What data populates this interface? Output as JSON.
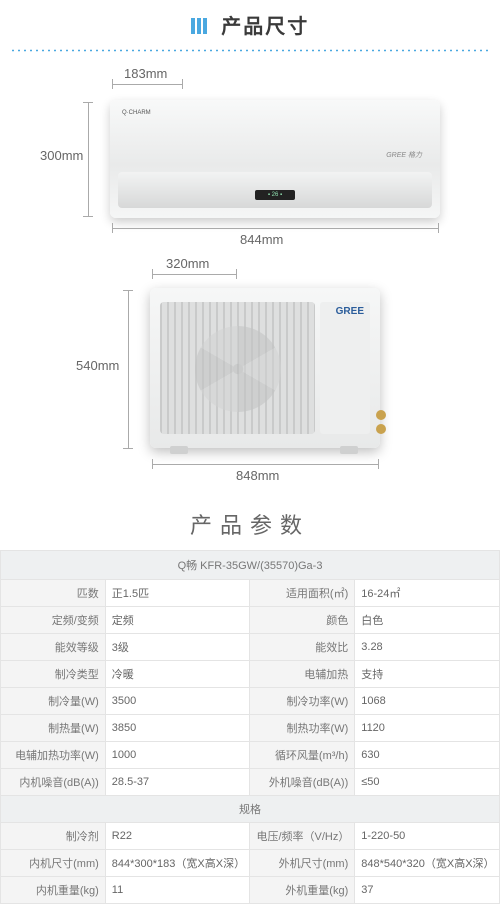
{
  "header": {
    "title": "产品尺寸"
  },
  "indoor": {
    "depth_label": "183mm",
    "height_label": "300mm",
    "width_label": "844mm",
    "badge": "Q·CHARM",
    "brand": "GREE 格力",
    "display": "▪ 26 ▪"
  },
  "outdoor": {
    "depth_label": "320mm",
    "height_label": "540mm",
    "width_label": "848mm",
    "brand": "GREE"
  },
  "specs": {
    "title": "产品参数",
    "model": "Q畅   KFR-35GW/(35570)Ga-3",
    "section_label": "规格",
    "rows_a": [
      {
        "l1": "匹数",
        "v1": "正1.5匹",
        "l2": "适用面积(㎡)",
        "v2": "16-24㎡"
      },
      {
        "l1": "定频/变频",
        "v1": "定频",
        "l2": "颜色",
        "v2": "白色"
      },
      {
        "l1": "能效等级",
        "v1": "3级",
        "l2": "能效比",
        "v2": "3.28"
      },
      {
        "l1": "制冷类型",
        "v1": "冷暖",
        "l2": "电辅加热",
        "v2": "支持"
      },
      {
        "l1": "制冷量(W)",
        "v1": "3500",
        "l2": "制冷功率(W)",
        "v2": "1068"
      },
      {
        "l1": "制热量(W)",
        "v1": "3850",
        "l2": "制热功率(W)",
        "v2": "1120"
      },
      {
        "l1": "电辅加热功率(W)",
        "v1": "1000",
        "l2": "循环风量(m³/h)",
        "v2": "630"
      },
      {
        "l1": "内机噪音(dB(A))",
        "v1": "28.5-37",
        "l2": "外机噪音(dB(A))",
        "v2": "≤50"
      }
    ],
    "rows_b": [
      {
        "l1": "制冷剂",
        "v1": "R22",
        "l2": "电压/频率（V/Hz）",
        "v2": "1-220-50"
      },
      {
        "l1": "内机尺寸(mm)",
        "v1": "844*300*183（宽X高X深）",
        "l2": "外机尺寸(mm)",
        "v2": "848*540*320（宽X高X深）"
      },
      {
        "l1": "内机重量(kg)",
        "v1": "11",
        "l2": "外机重量(kg)",
        "v2": "37"
      }
    ]
  }
}
